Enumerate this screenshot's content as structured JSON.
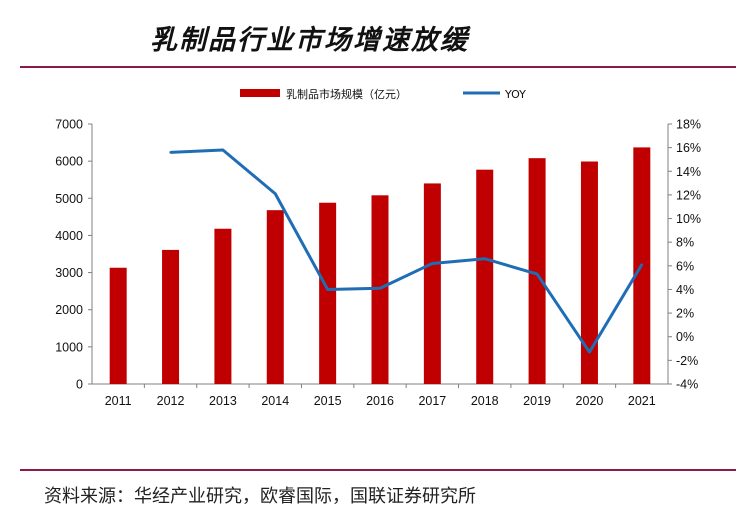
{
  "page": {
    "title": "乳制品行业市场增速放缓",
    "source": "资料来源：华经产业研究，欧睿国际，国联证券研究所"
  },
  "colors": {
    "bar": "#c00000",
    "line": "#1f6db5",
    "rule": "#8b1a4a",
    "axis": "#808080"
  },
  "chart_data": {
    "type": "bar",
    "title": "",
    "xlabel": "",
    "ylabel": "",
    "categories": [
      "2011",
      "2012",
      "2013",
      "2014",
      "2015",
      "2016",
      "2017",
      "2018",
      "2019",
      "2020",
      "2021"
    ],
    "series": [
      {
        "name": "乳制品市场规模（亿元）",
        "type": "bar",
        "axis": "left",
        "values": [
          3130,
          3610,
          4180,
          4680,
          4880,
          5080,
          5400,
          5770,
          6080,
          5990,
          6370
        ]
      },
      {
        "name": "YOY",
        "type": "line",
        "axis": "right",
        "values": [
          null,
          15.6,
          15.8,
          12.1,
          4.0,
          4.1,
          6.2,
          6.6,
          5.3,
          -1.3,
          6.1
        ]
      }
    ],
    "ylim_left": [
      0,
      7000
    ],
    "ylim_right": [
      -4,
      18
    ],
    "yticks_left": [
      "0",
      "1000",
      "2000",
      "3000",
      "4000",
      "5000",
      "6000",
      "7000"
    ],
    "yticks_right": [
      "-4%",
      "-2%",
      "0%",
      "2%",
      "4%",
      "6%",
      "8%",
      "10%",
      "12%",
      "14%",
      "16%",
      "18%"
    ],
    "legend_position": "top-center",
    "grid": false
  }
}
